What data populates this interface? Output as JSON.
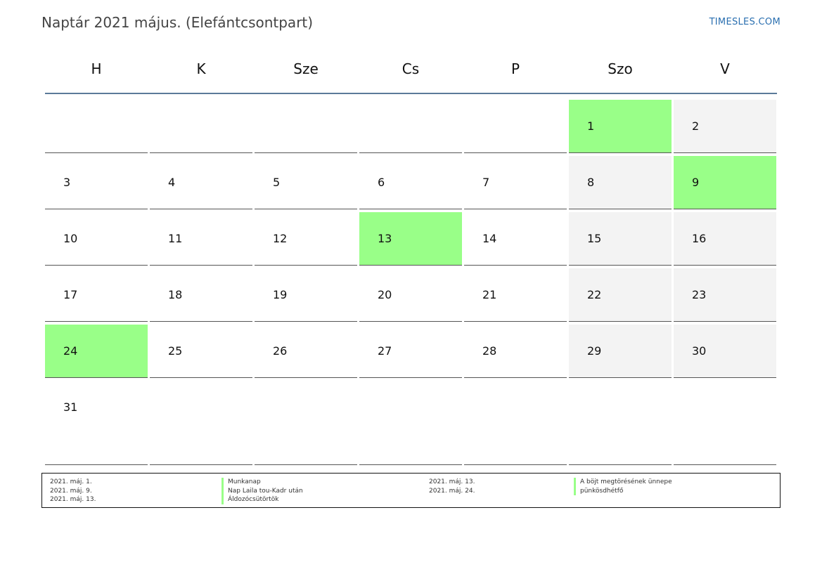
{
  "header": {
    "title": "Naptár 2021 május. (Elefántcsontpart)",
    "site": "TIMESLES.COM"
  },
  "weekdays": [
    "H",
    "K",
    "Sze",
    "Cs",
    "P",
    "Szo",
    "V"
  ],
  "weeks": [
    [
      "",
      "",
      "",
      "",
      "",
      "1",
      "2"
    ],
    [
      "3",
      "4",
      "5",
      "6",
      "7",
      "8",
      "9"
    ],
    [
      "10",
      "11",
      "12",
      "13",
      "14",
      "15",
      "16"
    ],
    [
      "17",
      "18",
      "19",
      "20",
      "21",
      "22",
      "23"
    ],
    [
      "24",
      "25",
      "26",
      "27",
      "28",
      "29",
      "30"
    ],
    [
      "31",
      "",
      "",
      "",
      "",
      "",
      ""
    ]
  ],
  "holiday_days": [
    "1",
    "9",
    "13",
    "24"
  ],
  "colors": {
    "holiday": "#99ff88",
    "weekend": "#f3f3f3",
    "header_rule": "#5b7a99",
    "site_link": "#2a6fb0"
  },
  "legend": {
    "left_dates": [
      "2021. máj. 1.",
      "2021. máj. 9.",
      "2021. máj. 13."
    ],
    "left_names": [
      "Munkanap",
      "Nap Laila tou-Kadr után",
      "Áldozócsütörtök"
    ],
    "right_dates": [
      "2021. máj. 13.",
      "2021. máj. 24."
    ],
    "right_names": [
      "A böjt megtörésének ünnepe",
      "pünkösdhétfő"
    ]
  }
}
